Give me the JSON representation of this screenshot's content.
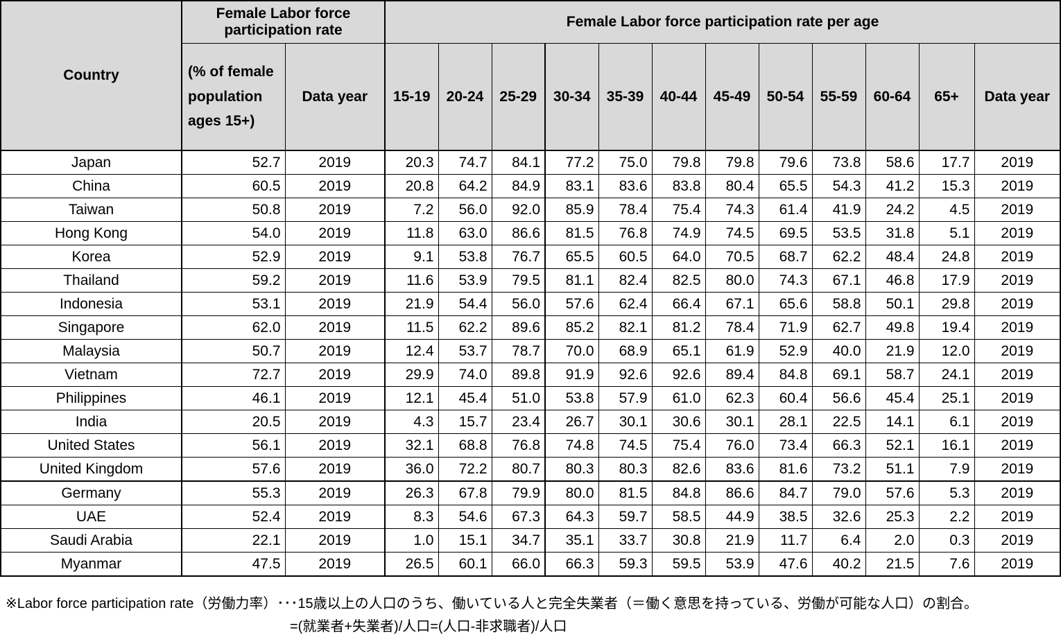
{
  "header": {
    "country_label": "Country",
    "summary_title": "Female Labor force participation rate",
    "summary_subtitle": "(% of female population ages 15+)",
    "summary_data_year_label": "Data year",
    "per_age_title": "Female Labor force participation rate per age",
    "age_groups": [
      "15-19",
      "20-24",
      "25-29",
      "30-34",
      "35-39",
      "40-44",
      "45-49",
      "50-54",
      "55-59",
      "60-64",
      "65+"
    ],
    "per_age_data_year_label": "Data year"
  },
  "rows": [
    {
      "country": "Japan",
      "rate": "52.7",
      "year": "2019",
      "ages": [
        "20.3",
        "74.7",
        "84.1",
        "77.2",
        "75.0",
        "79.8",
        "79.8",
        "79.6",
        "73.8",
        "58.6",
        "17.7"
      ],
      "age_year": "2019"
    },
    {
      "country": "China",
      "rate": "60.5",
      "year": "2019",
      "ages": [
        "20.8",
        "64.2",
        "84.9",
        "83.1",
        "83.6",
        "83.8",
        "80.4",
        "65.5",
        "54.3",
        "41.2",
        "15.3"
      ],
      "age_year": "2019"
    },
    {
      "country": "Taiwan",
      "rate": "50.8",
      "year": "2019",
      "ages": [
        "7.2",
        "56.0",
        "92.0",
        "85.9",
        "78.4",
        "75.4",
        "74.3",
        "61.4",
        "41.9",
        "24.2",
        "4.5"
      ],
      "age_year": "2019"
    },
    {
      "country": "Hong Kong",
      "rate": "54.0",
      "year": "2019",
      "ages": [
        "11.8",
        "63.0",
        "86.6",
        "81.5",
        "76.8",
        "74.9",
        "74.5",
        "69.5",
        "53.5",
        "31.8",
        "5.1"
      ],
      "age_year": "2019"
    },
    {
      "country": "Korea",
      "rate": "52.9",
      "year": "2019",
      "ages": [
        "9.1",
        "53.8",
        "76.7",
        "65.5",
        "60.5",
        "64.0",
        "70.5",
        "68.7",
        "62.2",
        "48.4",
        "24.8"
      ],
      "age_year": "2019"
    },
    {
      "country": "Thailand",
      "rate": "59.2",
      "year": "2019",
      "ages": [
        "11.6",
        "53.9",
        "79.5",
        "81.1",
        "82.4",
        "82.5",
        "80.0",
        "74.3",
        "67.1",
        "46.8",
        "17.9"
      ],
      "age_year": "2019"
    },
    {
      "country": "Indonesia",
      "rate": "53.1",
      "year": "2019",
      "ages": [
        "21.9",
        "54.4",
        "56.0",
        "57.6",
        "62.4",
        "66.4",
        "67.1",
        "65.6",
        "58.8",
        "50.1",
        "29.8"
      ],
      "age_year": "2019"
    },
    {
      "country": "Singapore",
      "rate": "62.0",
      "year": "2019",
      "ages": [
        "11.5",
        "62.2",
        "89.6",
        "85.2",
        "82.1",
        "81.2",
        "78.4",
        "71.9",
        "62.7",
        "49.8",
        "19.4"
      ],
      "age_year": "2019"
    },
    {
      "country": "Malaysia",
      "rate": "50.7",
      "year": "2019",
      "ages": [
        "12.4",
        "53.7",
        "78.7",
        "70.0",
        "68.9",
        "65.1",
        "61.9",
        "52.9",
        "40.0",
        "21.9",
        "12.0"
      ],
      "age_year": "2019"
    },
    {
      "country": "Vietnam",
      "rate": "72.7",
      "year": "2019",
      "ages": [
        "29.9",
        "74.0",
        "89.8",
        "91.9",
        "92.6",
        "92.6",
        "89.4",
        "84.8",
        "69.1",
        "58.7",
        "24.1"
      ],
      "age_year": "2019"
    },
    {
      "country": "Philippines",
      "rate": "46.1",
      "year": "2019",
      "ages": [
        "12.1",
        "45.4",
        "51.0",
        "53.8",
        "57.9",
        "61.0",
        "62.3",
        "60.4",
        "56.6",
        "45.4",
        "25.1"
      ],
      "age_year": "2019"
    },
    {
      "country": "India",
      "rate": "20.5",
      "year": "2019",
      "ages": [
        "4.3",
        "15.7",
        "23.4",
        "26.7",
        "30.1",
        "30.6",
        "30.1",
        "28.1",
        "22.5",
        "14.1",
        "6.1"
      ],
      "age_year": "2019"
    },
    {
      "country": "United States",
      "rate": "56.1",
      "year": "2019",
      "ages": [
        "32.1",
        "68.8",
        "76.8",
        "74.8",
        "74.5",
        "75.4",
        "76.0",
        "73.4",
        "66.3",
        "52.1",
        "16.1"
      ],
      "age_year": "2019"
    },
    {
      "country": "United Kingdom",
      "rate": "57.6",
      "year": "2019",
      "ages": [
        "36.0",
        "72.2",
        "80.7",
        "80.3",
        "80.3",
        "82.6",
        "83.6",
        "81.6",
        "73.2",
        "51.1",
        "7.9"
      ],
      "age_year": "2019"
    },
    {
      "country": "Germany",
      "rate": "55.3",
      "year": "2019",
      "ages": [
        "26.3",
        "67.8",
        "79.9",
        "80.0",
        "81.5",
        "84.8",
        "86.6",
        "84.7",
        "79.0",
        "57.6",
        "5.3"
      ],
      "age_year": "2019"
    },
    {
      "country": "UAE",
      "rate": "52.4",
      "year": "2019",
      "ages": [
        "8.3",
        "54.6",
        "67.3",
        "64.3",
        "59.7",
        "58.5",
        "44.9",
        "38.5",
        "32.6",
        "25.3",
        "2.2"
      ],
      "age_year": "2019"
    },
    {
      "country": "Saudi Arabia",
      "rate": "22.1",
      "year": "2019",
      "ages": [
        "1.0",
        "15.1",
        "34.7",
        "35.1",
        "33.7",
        "30.8",
        "21.9",
        "11.7",
        "6.4",
        "2.0",
        "0.3"
      ],
      "age_year": "2019"
    },
    {
      "country": "Myanmar",
      "rate": "47.5",
      "year": "2019",
      "ages": [
        "26.5",
        "60.1",
        "66.0",
        "66.3",
        "59.3",
        "59.5",
        "53.9",
        "47.6",
        "40.2",
        "21.5",
        "7.6"
      ],
      "age_year": "2019"
    }
  ],
  "footnote": {
    "line1": "※Labor force participation rate（労働力率）･･･15歳以上の人口のうち、働いている人と完全失業者（＝働く意思を持っている、労働が可能な人口）の割合。",
    "line2": "=(就業者+失業者)/人口=(人口-非求職者)/人口"
  },
  "colors": {
    "header_background": "#d9d9d9",
    "border": "#000000",
    "text": "#000000"
  }
}
